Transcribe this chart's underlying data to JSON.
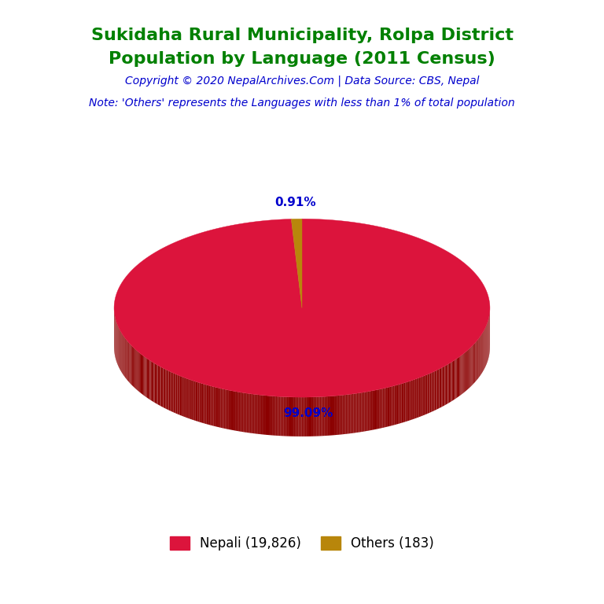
{
  "title_line1": "Sukidaha Rural Municipality, Rolpa District",
  "title_line2": "Population by Language (2011 Census)",
  "title_color": "#008000",
  "copyright_text": "Copyright © 2020 NepalArchives.Com | Data Source: CBS, Nepal",
  "copyright_color": "#0000CD",
  "note_text": "Note: 'Others' represents the Languages with less than 1% of total population",
  "note_color": "#0000CD",
  "slices": [
    19826,
    183
  ],
  "labels": [
    "Nepali (19,826)",
    "Others (183)"
  ],
  "percentages": [
    "99.09%",
    "0.91%"
  ],
  "colors": [
    "#DC143C",
    "#B8860B"
  ],
  "shadow_color": "#8B0000",
  "pct_color": "#0000CD",
  "background_color": "#FFFFFF",
  "startangle": 90
}
